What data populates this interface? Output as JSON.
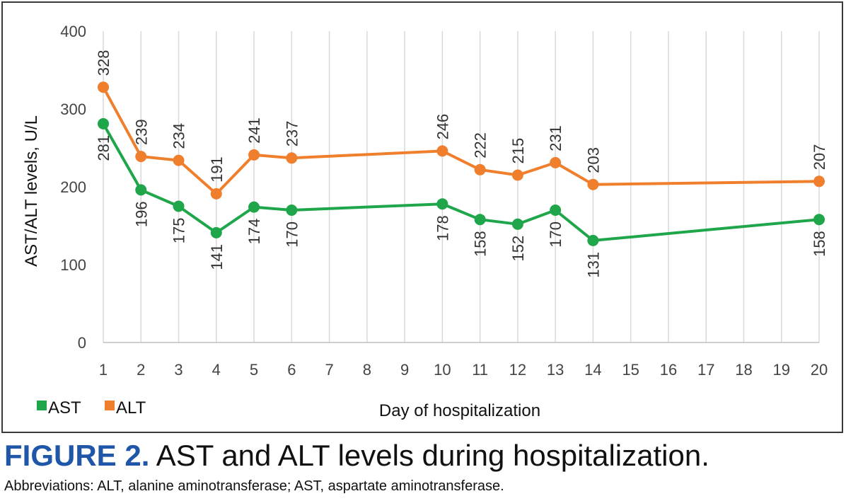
{
  "chart_data": {
    "type": "line",
    "xlabel": "Day of hospitalization",
    "ylabel": "AST/ALT levels, U/L",
    "categories": [
      "1",
      "2",
      "3",
      "4",
      "5",
      "6",
      "7",
      "8",
      "9",
      "10",
      "11",
      "12",
      "13",
      "14",
      "15",
      "16",
      "17",
      "18",
      "19",
      "20"
    ],
    "ylim": [
      0,
      400
    ],
    "yticks": [
      0,
      100,
      200,
      300,
      400
    ],
    "grid": "vertical",
    "legend_position": "bottom-left",
    "series": [
      {
        "name": "AST",
        "color": "#1fa64a",
        "x": [
          1,
          2,
          3,
          4,
          5,
          6,
          10,
          11,
          12,
          13,
          14,
          20
        ],
        "values": [
          281,
          196,
          175,
          141,
          174,
          170,
          178,
          158,
          152,
          170,
          131,
          158
        ]
      },
      {
        "name": "ALT",
        "color": "#f07f2d",
        "x": [
          1,
          2,
          3,
          4,
          5,
          6,
          10,
          11,
          12,
          13,
          14,
          20
        ],
        "values": [
          328,
          239,
          234,
          191,
          241,
          237,
          246,
          222,
          215,
          231,
          203,
          207
        ]
      }
    ]
  },
  "caption": {
    "figure_label": "FIGURE 2.",
    "text": " AST and ALT levels during hospitalization."
  },
  "abbreviations": "Abbreviations: ALT, alanine aminotransferase; AST, aspartate aminotransferase."
}
